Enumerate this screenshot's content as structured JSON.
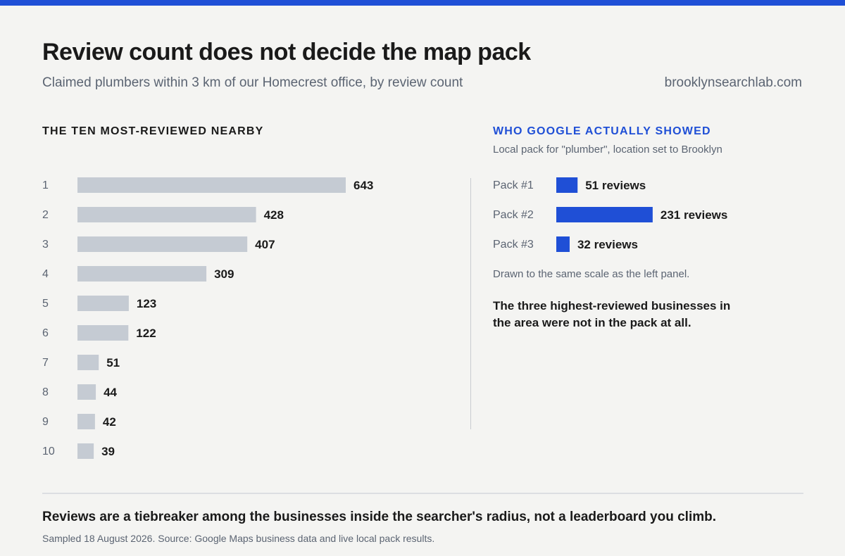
{
  "header": {
    "title": "Review count does not decide the map pack",
    "subtitle": "Claimed plumbers within 3 km of our Homecrest office, by review count",
    "site": "brooklynsearchlab.com"
  },
  "colors": {
    "accent": "#1f4fd6",
    "gray_bar": "#c5cbd3",
    "muted_text": "#5b6472"
  },
  "left_panel": {
    "heading": "THE TEN MOST-REVIEWED NEARBY"
  },
  "right_panel": {
    "heading": "WHO GOOGLE ACTUALLY SHOWED",
    "subheading": "Local pack for \"plumber\", location set to Brooklyn",
    "scale_note": "Drawn to the same scale as the left panel.",
    "takeaway": "The three highest-reviewed businesses in the area were not in the pack at all."
  },
  "chart_data": [
    {
      "type": "bar",
      "orientation": "horizontal",
      "title": "THE TEN MOST-REVIEWED NEARBY",
      "categories": [
        "1",
        "2",
        "3",
        "4",
        "5",
        "6",
        "7",
        "8",
        "9",
        "10"
      ],
      "values": [
        643,
        428,
        407,
        309,
        123,
        122,
        51,
        44,
        42,
        39
      ],
      "value_labels": [
        "643",
        "428",
        "407",
        "309",
        "123",
        "122",
        "51",
        "44",
        "42",
        "39"
      ],
      "color": "#c5cbd3",
      "xlim": [
        0,
        643
      ]
    },
    {
      "type": "bar",
      "orientation": "horizontal",
      "title": "WHO GOOGLE ACTUALLY SHOWED",
      "categories": [
        "Pack #1",
        "Pack #2",
        "Pack #3"
      ],
      "values": [
        51,
        231,
        32
      ],
      "value_labels": [
        "51 reviews",
        "231 reviews",
        "32 reviews"
      ],
      "color": "#1f4fd6",
      "xlim": [
        0,
        643
      ]
    }
  ],
  "footer": {
    "conclusion": "Reviews are a tiebreaker among the businesses inside the searcher's radius, not a leaderboard you climb.",
    "source": "Sampled 18 August 2026. Source: Google Maps business data and live local pack results."
  }
}
